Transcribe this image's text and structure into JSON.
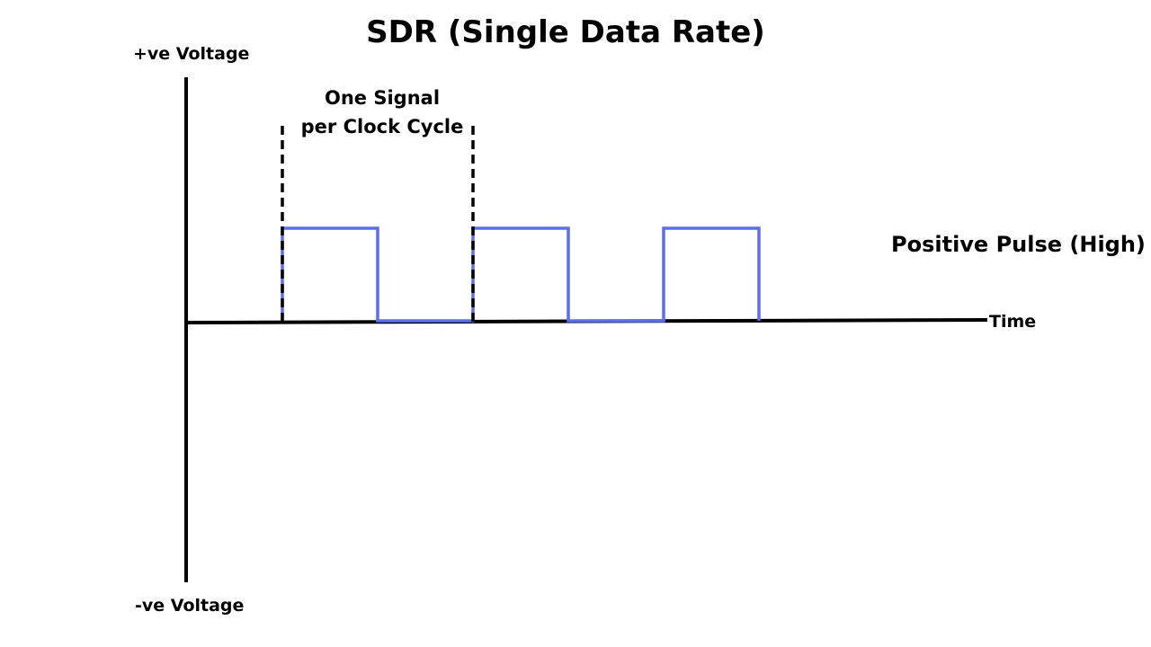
{
  "title": "SDR (Single Data Rate)",
  "y_axis": {
    "positive_label": "+ve Voltage",
    "negative_label": "-ve Voltage"
  },
  "x_axis": {
    "label": "Time"
  },
  "annotation": {
    "line1": "One Signal",
    "line2": "per Clock Cycle"
  },
  "pulse_label": "Positive Pulse (High)",
  "colors": {
    "axis": "#000000",
    "signal": "#5b6ff0",
    "marker": "#000000"
  },
  "signal": {
    "levels": [
      1,
      0,
      1,
      0,
      1
    ],
    "high_value": 1,
    "low_value": 0
  }
}
